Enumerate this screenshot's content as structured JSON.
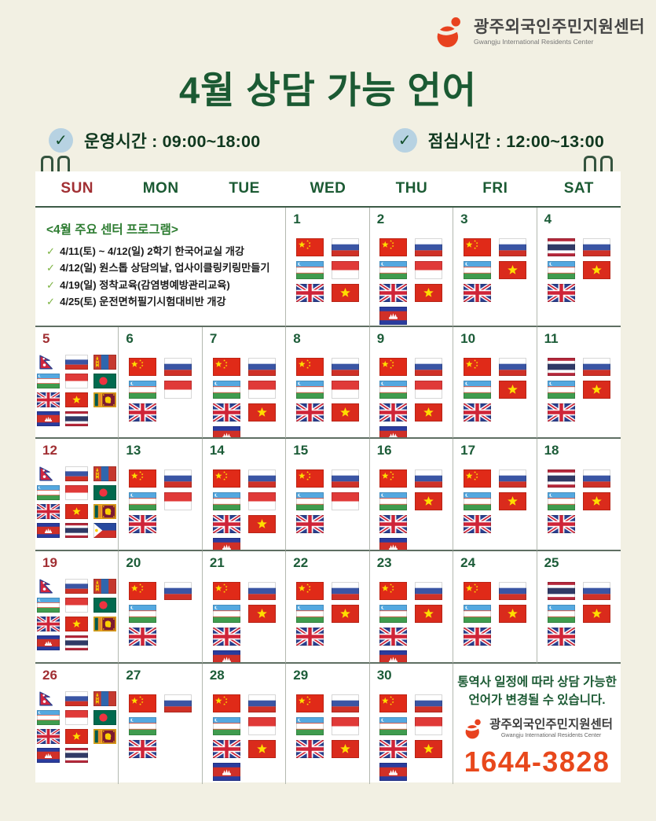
{
  "logo": {
    "name_ko": "광주외국인주민지원센터",
    "name_en": "Gwangju International Residents Center"
  },
  "title": "4월 상담 가능 언어",
  "info_badges": [
    {
      "label": "운영시간 : 09:00~18:00"
    },
    {
      "label": "점심시간 : 12:00~13:00"
    }
  ],
  "calendar": {
    "weekdays": [
      "SUN",
      "MON",
      "TUE",
      "WED",
      "THU",
      "FRI",
      "SAT"
    ],
    "program_note": {
      "title": "<4월 주요 센터 프로그램>",
      "items": [
        "4/11(토) ~ 4/12(일) 2학기 한국어교실 개강",
        "4/12(일) 원스톱 상담의날, 업사이클링키링만들기",
        "4/19(일) 정착교육(감염병예방관리교육)",
        "4/25(토) 운전면허필기시험대비반 개강"
      ]
    },
    "days": [
      {
        "date": 1,
        "row": 0,
        "col": 3,
        "flags": [
          [
            "cn",
            "uz",
            "gb"
          ],
          [
            "ru",
            "id",
            "vn"
          ]
        ]
      },
      {
        "date": 2,
        "row": 0,
        "col": 4,
        "flags": [
          [
            "cn",
            "uz",
            "gb",
            "kh"
          ],
          [
            "ru",
            "id",
            "vn"
          ]
        ]
      },
      {
        "date": 3,
        "row": 0,
        "col": 5,
        "flags": [
          [
            "cn",
            "uz",
            "gb"
          ],
          [
            "ru",
            "vn"
          ]
        ]
      },
      {
        "date": 4,
        "row": 0,
        "col": 6,
        "flags": [
          [
            "th",
            "uz",
            "gb"
          ],
          [
            "ru",
            "vn"
          ]
        ]
      },
      {
        "date": 5,
        "row": 1,
        "col": 0,
        "flags": [
          [
            "np",
            "uz",
            "gb",
            "kh"
          ],
          [
            "ru",
            "id",
            "vn",
            "th"
          ],
          [
            "mn",
            "bd",
            "lk"
          ]
        ]
      },
      {
        "date": 6,
        "row": 1,
        "col": 1,
        "flags": [
          [
            "cn",
            "uz",
            "gb"
          ],
          [
            "ru",
            "id"
          ]
        ]
      },
      {
        "date": 7,
        "row": 1,
        "col": 2,
        "flags": [
          [
            "cn",
            "uz",
            "gb",
            "kh"
          ],
          [
            "ru",
            "id",
            "vn"
          ]
        ]
      },
      {
        "date": 8,
        "row": 1,
        "col": 3,
        "flags": [
          [
            "cn",
            "uz",
            "gb"
          ],
          [
            "ru",
            "id",
            "vn"
          ]
        ]
      },
      {
        "date": 9,
        "row": 1,
        "col": 4,
        "flags": [
          [
            "cn",
            "uz",
            "gb",
            "kh"
          ],
          [
            "ru",
            "id",
            "vn"
          ]
        ]
      },
      {
        "date": 10,
        "row": 1,
        "col": 5,
        "flags": [
          [
            "cn",
            "uz",
            "gb"
          ],
          [
            "ru",
            "vn"
          ]
        ]
      },
      {
        "date": 11,
        "row": 1,
        "col": 6,
        "flags": [
          [
            "th",
            "uz",
            "gb"
          ],
          [
            "ru",
            "vn"
          ]
        ]
      },
      {
        "date": 12,
        "row": 2,
        "col": 0,
        "flags": [
          [
            "np",
            "uz",
            "gb",
            "kh"
          ],
          [
            "ru",
            "id",
            "vn",
            "th"
          ],
          [
            "mn",
            "bd",
            "lk",
            "ph"
          ]
        ]
      },
      {
        "date": 13,
        "row": 2,
        "col": 1,
        "flags": [
          [
            "cn",
            "uz",
            "gb"
          ],
          [
            "ru",
            "id"
          ]
        ]
      },
      {
        "date": 14,
        "row": 2,
        "col": 2,
        "flags": [
          [
            "cn",
            "uz",
            "gb",
            "kh"
          ],
          [
            "ru",
            "id",
            "vn"
          ]
        ]
      },
      {
        "date": 15,
        "row": 2,
        "col": 3,
        "flags": [
          [
            "cn",
            "uz",
            "gb"
          ],
          [
            "ru",
            "id"
          ]
        ]
      },
      {
        "date": 16,
        "row": 2,
        "col": 4,
        "flags": [
          [
            "cn",
            "uz",
            "gb",
            "kh"
          ],
          [
            "ru",
            "vn"
          ]
        ]
      },
      {
        "date": 17,
        "row": 2,
        "col": 5,
        "flags": [
          [
            "cn",
            "uz",
            "gb"
          ],
          [
            "ru",
            "vn"
          ]
        ]
      },
      {
        "date": 18,
        "row": 2,
        "col": 6,
        "flags": [
          [
            "th",
            "uz",
            "gb"
          ],
          [
            "ru",
            "vn"
          ]
        ]
      },
      {
        "date": 19,
        "row": 3,
        "col": 0,
        "flags": [
          [
            "np",
            "uz",
            "gb",
            "kh"
          ],
          [
            "ru",
            "id",
            "vn",
            "th"
          ],
          [
            "mn",
            "bd",
            "lk"
          ]
        ]
      },
      {
        "date": 20,
        "row": 3,
        "col": 1,
        "flags": [
          [
            "cn",
            "uz",
            "gb"
          ],
          [
            "ru"
          ]
        ]
      },
      {
        "date": 21,
        "row": 3,
        "col": 2,
        "flags": [
          [
            "cn",
            "uz",
            "gb",
            "kh"
          ],
          [
            "ru",
            "vn"
          ]
        ]
      },
      {
        "date": 22,
        "row": 3,
        "col": 3,
        "flags": [
          [
            "cn",
            "uz",
            "gb"
          ],
          [
            "ru",
            "vn"
          ]
        ]
      },
      {
        "date": 23,
        "row": 3,
        "col": 4,
        "flags": [
          [
            "cn",
            "uz",
            "gb",
            "kh"
          ],
          [
            "ru",
            "vn"
          ]
        ]
      },
      {
        "date": 24,
        "row": 3,
        "col": 5,
        "flags": [
          [
            "cn",
            "uz",
            "gb"
          ],
          [
            "ru",
            "vn"
          ]
        ]
      },
      {
        "date": 25,
        "row": 3,
        "col": 6,
        "flags": [
          [
            "th",
            "uz",
            "gb"
          ],
          [
            "ru",
            "vn"
          ]
        ]
      },
      {
        "date": 26,
        "row": 4,
        "col": 0,
        "flags": [
          [
            "np",
            "uz",
            "gb",
            "kh"
          ],
          [
            "ru",
            "id",
            "vn",
            "th"
          ],
          [
            "mn",
            "bd",
            "lk"
          ]
        ]
      },
      {
        "date": 27,
        "row": 4,
        "col": 1,
        "flags": [
          [
            "cn",
            "uz",
            "gb"
          ],
          [
            "ru"
          ]
        ]
      },
      {
        "date": 28,
        "row": 4,
        "col": 2,
        "flags": [
          [
            "cn",
            "uz",
            "gb",
            "kh"
          ],
          [
            "ru",
            "id",
            "vn"
          ]
        ]
      },
      {
        "date": 29,
        "row": 4,
        "col": 3,
        "flags": [
          [
            "cn",
            "uz",
            "gb"
          ],
          [
            "ru",
            "id",
            "vn"
          ]
        ]
      },
      {
        "date": 30,
        "row": 4,
        "col": 4,
        "flags": [
          [
            "cn",
            "uz",
            "gb",
            "kh"
          ],
          [
            "ru",
            "id",
            "vn"
          ]
        ]
      }
    ],
    "notice": {
      "line1": "통역사 일정에 따라 상담 가능한",
      "line2": "언어가 변경될 수 있습니다.",
      "phone": "1644-3828"
    }
  },
  "flag_names": {
    "cn": "china",
    "ru": "russia",
    "uz": "uzbekistan",
    "gb": "united-kingdom",
    "vn": "vietnam",
    "id": "indonesia",
    "kh": "cambodia",
    "th": "thailand",
    "np": "nepal",
    "mn": "mongolia",
    "bd": "bangladesh",
    "lk": "sri-lanka",
    "ph": "philippines"
  },
  "colors": {
    "background": "#f2f0e3",
    "title_green": "#1b5a33",
    "sunday_red": "#a12f33",
    "phone_orange": "#e8481c",
    "check_circle_blue": "#b7d2e2",
    "note_green": "#2e7d32"
  }
}
